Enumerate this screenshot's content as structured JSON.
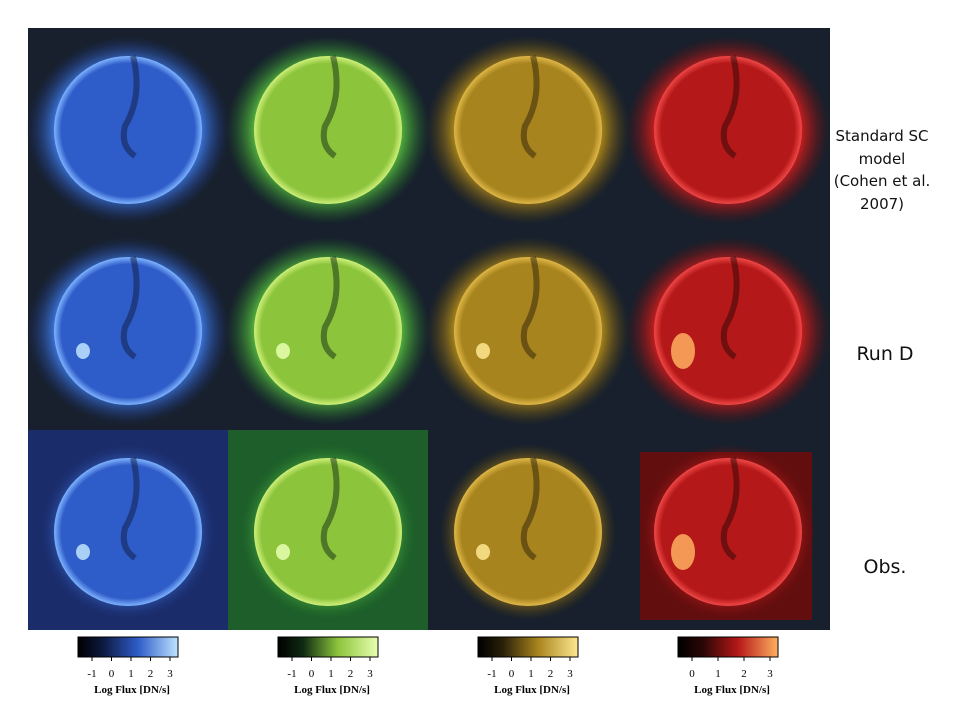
{
  "row_labels": [
    "Standard SC model (Cohen et al. 2007)",
    "Run D",
    "Obs."
  ],
  "colorbars": [
    {
      "ticks": [
        -1,
        0,
        1,
        2,
        3
      ],
      "label": "Log Flux [DN/s]"
    },
    {
      "ticks": [
        -1,
        0,
        1,
        2,
        3
      ],
      "label": "Log Flux [DN/s]"
    },
    {
      "ticks": [
        -1,
        0,
        1,
        2,
        3
      ],
      "label": "Log Flux [DN/s]"
    },
    {
      "ticks": [
        0,
        1,
        2,
        3
      ],
      "label": "Log Flux [DN/s]"
    }
  ]
}
